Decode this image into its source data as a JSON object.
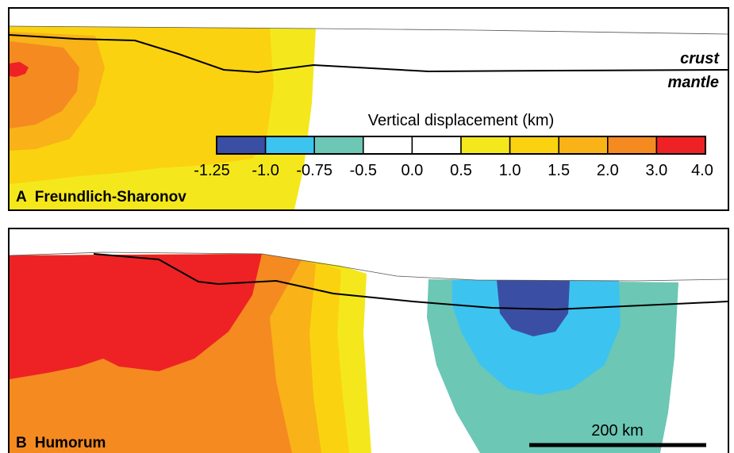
{
  "panels": {
    "a": {
      "letter": "A",
      "name": "Freundlich-Sharonov"
    },
    "b": {
      "letter": "B",
      "name": "Humorum"
    }
  },
  "layer_labels": {
    "crust": "crust",
    "mantle": "mantle"
  },
  "legend": {
    "title": "Vertical displacement (km)",
    "colors": [
      "#3a4fa3",
      "#3dc3ef",
      "#6cc7b5",
      "#ffffff",
      "#ffffff",
      "#f4e81c",
      "#fbd20f",
      "#f9b218",
      "#f58a21",
      "#ee2224"
    ],
    "ticks": [
      "-1.25",
      "-1.0",
      "-0.75",
      "-0.5",
      "0.0",
      "0.5",
      "1.0",
      "1.5",
      "2.0",
      "3.0",
      "4.0"
    ]
  },
  "scale_bar": {
    "label": "200 km"
  }
}
